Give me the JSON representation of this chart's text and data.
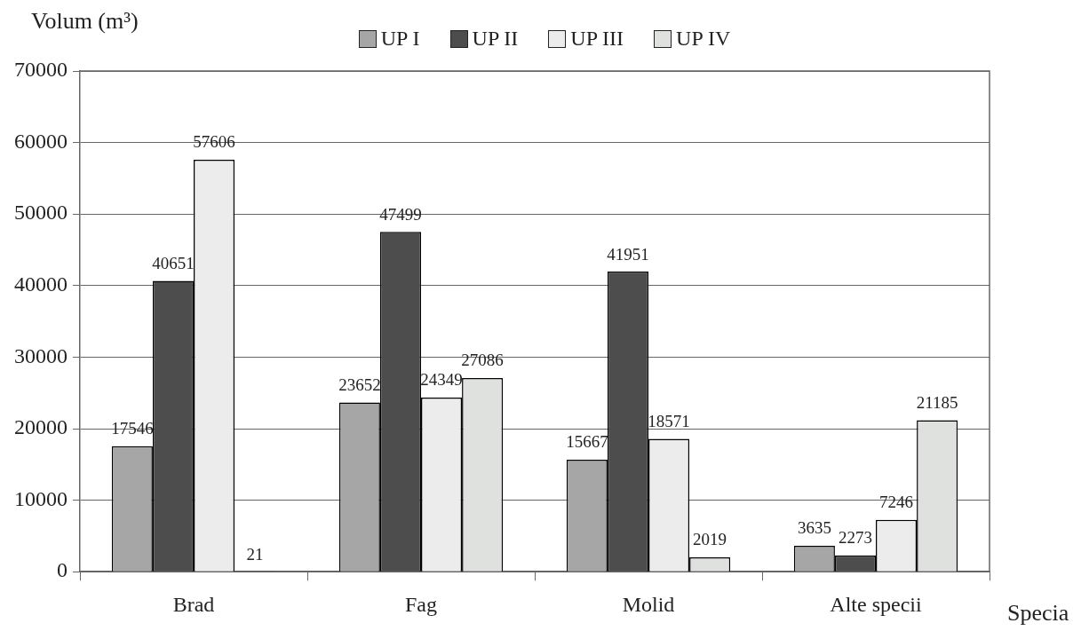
{
  "chart_data": {
    "type": "bar",
    "xlabel": "Specia",
    "ylabel": "Volum (m³)",
    "categories": [
      "Brad",
      "Fag",
      "Molid",
      "Alte specii"
    ],
    "series": [
      {
        "name": "UP I",
        "color": "#a6a6a6",
        "values": [
          17546,
          23652,
          15667,
          3635
        ]
      },
      {
        "name": "UP II",
        "color": "#4d4d4d",
        "values": [
          40651,
          47499,
          41951,
          2273
        ]
      },
      {
        "name": "UP III",
        "color": "#ececec",
        "values": [
          57606,
          24349,
          18571,
          7246
        ]
      },
      {
        "name": "UP IV",
        "color": "#dfe1df",
        "values": [
          21,
          27086,
          2019,
          21185
        ]
      }
    ],
    "ylim": [
      0,
      70000
    ],
    "yticks": [
      0,
      10000,
      20000,
      30000,
      40000,
      50000,
      60000,
      70000
    ],
    "grid": "y",
    "legend": "top",
    "data_labels": true
  }
}
